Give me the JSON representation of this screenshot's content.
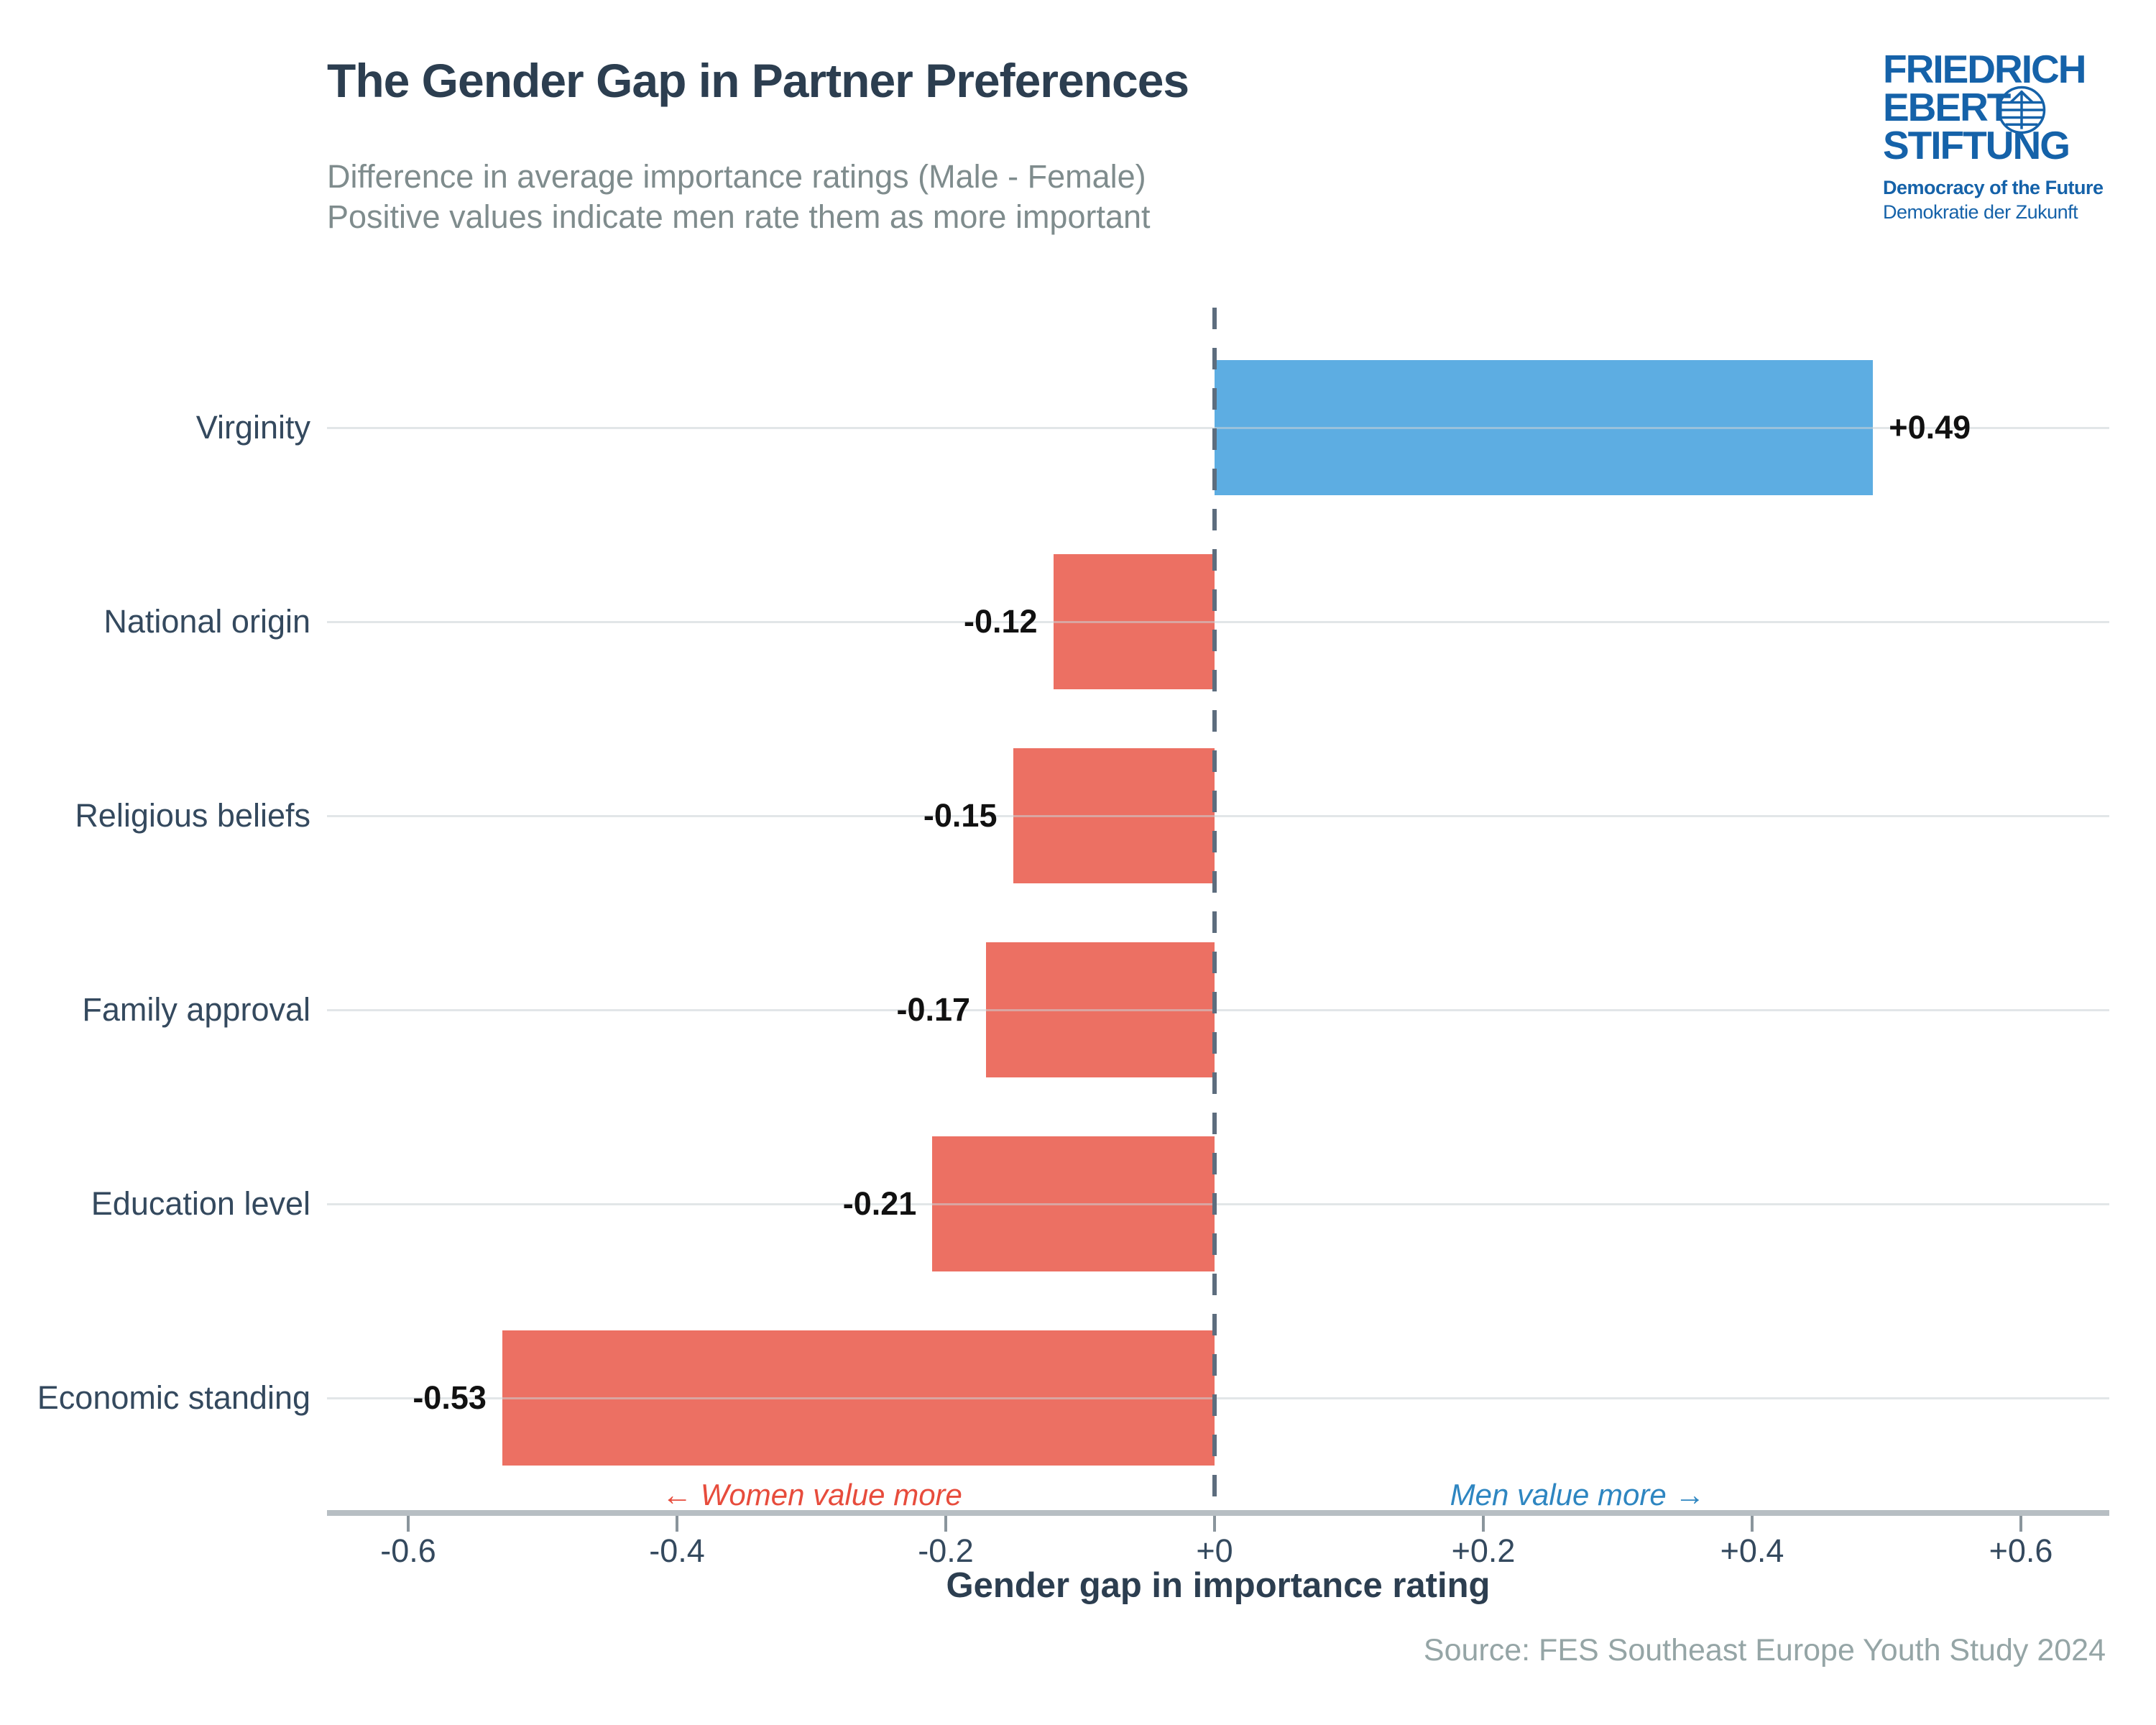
{
  "header": {
    "title": "The Gender Gap in Partner Preferences",
    "subtitle_line1": "Difference in average importance ratings (Male - Female)",
    "subtitle_line2": "Positive values indicate men rate them as more important"
  },
  "logo": {
    "line1": "FRIEDRICH",
    "line2": "EBERT",
    "line3": "STIFTUNG",
    "tagline_en": "Democracy of the Future",
    "tagline_de": "Demokratie der Zukunft",
    "color": "#1562a9",
    "globe_icon": "globe-icon"
  },
  "chart_data": {
    "type": "bar",
    "orientation": "horizontal",
    "title": "The Gender Gap in Partner Preferences",
    "categories": [
      "Virginity",
      "National origin",
      "Religious beliefs",
      "Family approval",
      "Education level",
      "Economic standing"
    ],
    "values": [
      0.49,
      -0.12,
      -0.15,
      -0.17,
      -0.21,
      -0.53
    ],
    "value_labels": [
      "+0.49",
      "-0.12",
      "-0.15",
      "-0.17",
      "-0.21",
      "-0.53"
    ],
    "positive_color": "#5dade2",
    "negative_color": "#ec7063",
    "xlabel": "Gender gap in importance rating",
    "ylabel": "",
    "xlim": [
      -0.66,
      0.66
    ],
    "x_ticks": [
      -0.6,
      -0.4,
      -0.2,
      0,
      0.2,
      0.4,
      0.6
    ],
    "x_tick_labels": [
      "-0.6",
      "-0.4",
      "-0.2",
      "+0",
      "+0.2",
      "+0.4",
      "+0.6"
    ],
    "zero_line": "dashed",
    "zero_line_color": "#5d6d7e",
    "grid": "horizontal per-category",
    "legend": "none",
    "annotations": [
      {
        "text": "← Women value more",
        "color": "#e74c3c",
        "side": "left"
      },
      {
        "text": "Men value more →",
        "color": "#2e86c1",
        "side": "right"
      }
    ]
  },
  "footer": {
    "source": "Source: FES Southeast Europe Youth Study 2024"
  }
}
